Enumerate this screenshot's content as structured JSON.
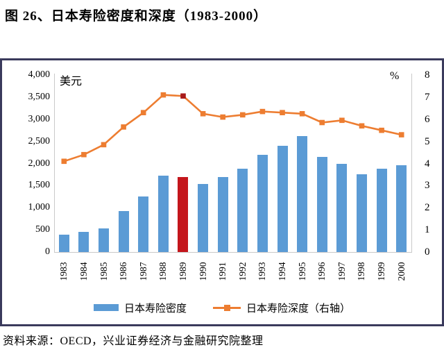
{
  "title": "图 26、日本寿险密度和深度（1983-2000）",
  "source": "资料来源：OECD，兴业证券经济与金融研究院整理",
  "colors": {
    "bar": "#5b9bd5",
    "bar_highlight": "#c4161c",
    "line": "#ed7d31",
    "marker": "#ed7d31",
    "marker_highlight": "#a81a1a",
    "frame": "#3a3a5c",
    "axis": "#c9c9c9"
  },
  "chart_data": {
    "type": "combo-bar-line",
    "title": "图 26、日本寿险密度和深度（1983-2000）",
    "categories": [
      "1983",
      "1984",
      "1985",
      "1986",
      "1987",
      "1988",
      "1989",
      "1990",
      "1991",
      "1992",
      "1993",
      "1994",
      "1995",
      "1996",
      "1997",
      "1998",
      "1999",
      "2000"
    ],
    "series": [
      {
        "name": "日本寿险密度",
        "type": "bar",
        "axis": "left",
        "highlight_index": 6,
        "values": [
          390,
          460,
          540,
          930,
          1250,
          1720,
          1700,
          1530,
          1700,
          1890,
          2200,
          2400,
          2620,
          2150,
          2000,
          1750,
          1890,
          1960
        ]
      },
      {
        "name": "日本寿险深度（右轴）",
        "type": "line",
        "axis": "right",
        "highlight_index": 6,
        "values": [
          4.1,
          4.4,
          4.85,
          5.65,
          6.3,
          7.1,
          7.05,
          6.25,
          6.1,
          6.2,
          6.35,
          6.3,
          6.25,
          5.85,
          5.95,
          5.7,
          5.5,
          5.3
        ]
      }
    ],
    "left_axis": {
      "label": "美元",
      "min": 0,
      "max": 4000,
      "step": 500,
      "ticks": [
        "0",
        "500",
        "1,000",
        "1,500",
        "2,000",
        "2,500",
        "3,000",
        "3,500",
        "4,000"
      ]
    },
    "right_axis": {
      "label": "%",
      "min": 0,
      "max": 8,
      "step": 1,
      "ticks": [
        "0",
        "1",
        "2",
        "3",
        "4",
        "5",
        "6",
        "7",
        "8"
      ]
    },
    "legend": [
      "日本寿险密度",
      "日本寿险深度（右轴）"
    ],
    "grid": false,
    "legend_position": "bottom"
  }
}
